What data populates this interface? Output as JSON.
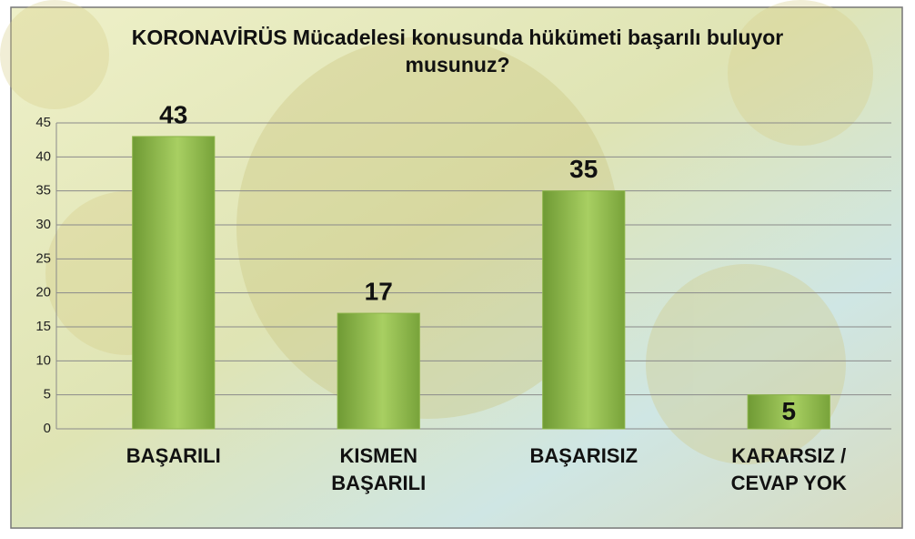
{
  "chart_data": {
    "type": "bar",
    "title": "KORONAVİRÜS Mücadelesi konusunda hükümeti başarılı buluyor musunuz?",
    "categories": [
      "BAŞARILI",
      "KISMEN BAŞARILI",
      "BAŞARISIZ",
      "KARARSIZ / CEVAP YOK"
    ],
    "values": [
      43,
      17,
      35,
      5
    ],
    "color": "#8db54a",
    "ylim": [
      0,
      45
    ],
    "yticks": [
      0,
      5,
      10,
      15,
      20,
      25,
      30,
      35,
      40,
      45
    ],
    "grid": true
  }
}
